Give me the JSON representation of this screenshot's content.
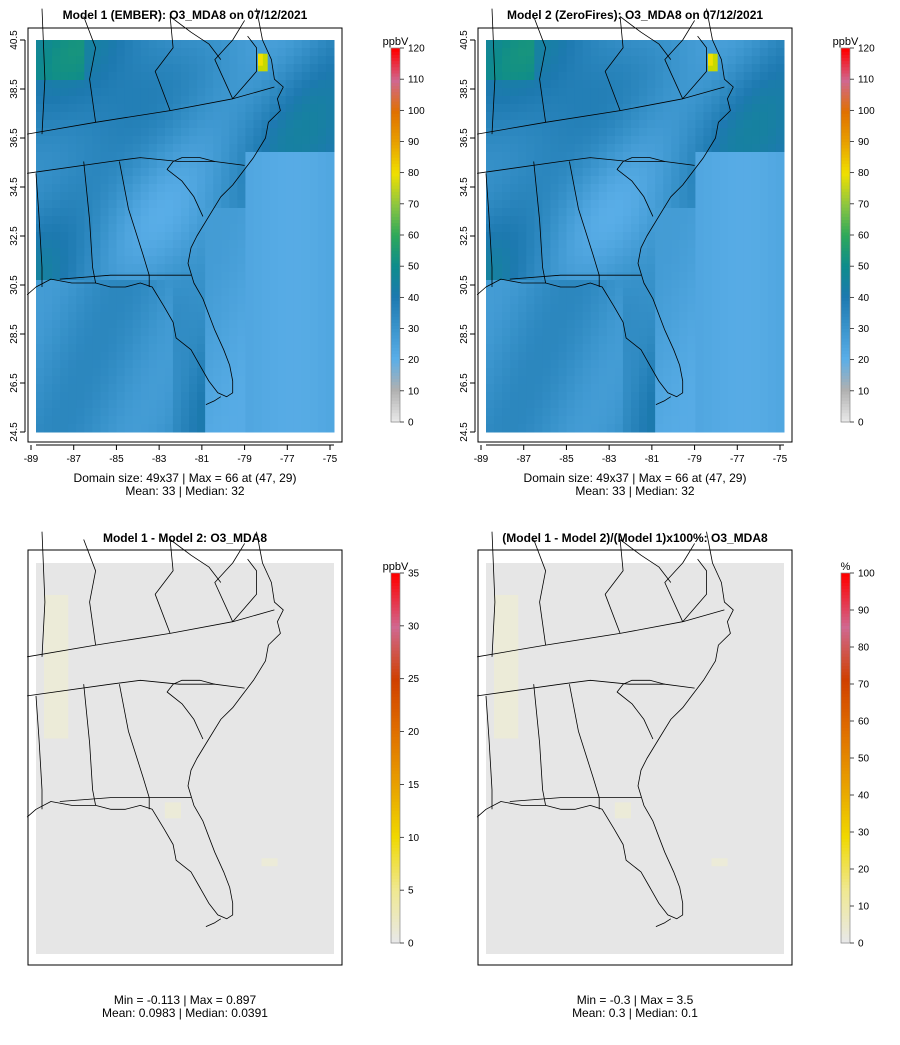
{
  "chart_data": [
    {
      "type": "heatmap",
      "title": "Model 1 (EMBER): O3_MDA8 on 07/12/2021",
      "x_ticks": [
        "-89",
        "-87",
        "-85",
        "-83",
        "-81",
        "-79",
        "-77",
        "-75"
      ],
      "y_ticks": [
        "24.5",
        "26.5",
        "28.5",
        "30.5",
        "32.5",
        "34.5",
        "36.5",
        "38.5",
        "40.5"
      ],
      "xlim": [
        -89,
        -75
      ],
      "ylim": [
        24.5,
        40.5
      ],
      "colorbar": {
        "unit": "ppbV",
        "ticks": [
          "0",
          "10",
          "20",
          "30",
          "40",
          "50",
          "60",
          "70",
          "80",
          "90",
          "100",
          "110",
          "120"
        ],
        "range": [
          0,
          120
        ],
        "colors": [
          "#e8e8e8",
          "#b0b0b0",
          "#5aaee8",
          "#3a94cc",
          "#1d79b0",
          "#0e8c8c",
          "#2ea85a",
          "#8ec63f",
          "#f0e000",
          "#e8a000",
          "#e07000",
          "#d06890",
          "#ff0000"
        ]
      },
      "stats": {
        "line1": "Domain size: 49x37 | Max = 66 at (47, 29)",
        "line2": "Mean: 33 |  Median: 32"
      }
    },
    {
      "type": "heatmap",
      "title": "Model 2 (ZeroFires): O3_MDA8 on 07/12/2021",
      "x_ticks": [
        "-89",
        "-87",
        "-85",
        "-83",
        "-81",
        "-79",
        "-77",
        "-75"
      ],
      "y_ticks": [
        "24.5",
        "26.5",
        "28.5",
        "30.5",
        "32.5",
        "34.5",
        "36.5",
        "38.5",
        "40.5"
      ],
      "xlim": [
        -89,
        -75
      ],
      "ylim": [
        24.5,
        40.5
      ],
      "colorbar": {
        "unit": "ppbV",
        "ticks": [
          "0",
          "10",
          "20",
          "30",
          "40",
          "50",
          "60",
          "70",
          "80",
          "90",
          "100",
          "110",
          "120"
        ],
        "range": [
          0,
          120
        ],
        "colors": [
          "#e8e8e8",
          "#b0b0b0",
          "#5aaee8",
          "#3a94cc",
          "#1d79b0",
          "#0e8c8c",
          "#2ea85a",
          "#8ec63f",
          "#f0e000",
          "#e8a000",
          "#e07000",
          "#d06890",
          "#ff0000"
        ]
      },
      "stats": {
        "line1": "Domain size: 49x37 | Max = 66 at (47, 29)",
        "line2": "Mean: 33 |  Median: 32"
      }
    },
    {
      "type": "heatmap",
      "title": "Model 1 - Model 2: O3_MDA8",
      "x_ticks": [],
      "y_ticks": [],
      "colorbar": {
        "unit": "ppbV",
        "ticks": [
          "0",
          "5",
          "10",
          "15",
          "20",
          "25",
          "30",
          "35"
        ],
        "range": [
          0,
          35
        ],
        "colors": [
          "#e8e8e8",
          "#f0e890",
          "#f0d800",
          "#e8a000",
          "#e07000",
          "#d04000",
          "#d06890",
          "#ff0000"
        ]
      },
      "stats": {
        "line1": "Min = -0.113 | Max = 0.897",
        "line2": "Mean: 0.0983 |  Median: 0.0391"
      }
    },
    {
      "type": "heatmap",
      "title": "(Model 1 - Model 2)/(Model 1)x100%: O3_MDA8",
      "x_ticks": [],
      "y_ticks": [],
      "colorbar": {
        "unit": "%",
        "ticks": [
          "0",
          "10",
          "20",
          "30",
          "40",
          "50",
          "60",
          "70",
          "80",
          "90",
          "100"
        ],
        "range": [
          0,
          100
        ],
        "colors": [
          "#e8e8e8",
          "#f0e890",
          "#f0d800",
          "#e8a000",
          "#e07000",
          "#d04000",
          "#d06890",
          "#ff0000"
        ]
      },
      "stats": {
        "line1": "Min = -0.3 | Max = 3.5",
        "line2": "Mean: 0.3 |  Median: 0.1"
      }
    }
  ]
}
